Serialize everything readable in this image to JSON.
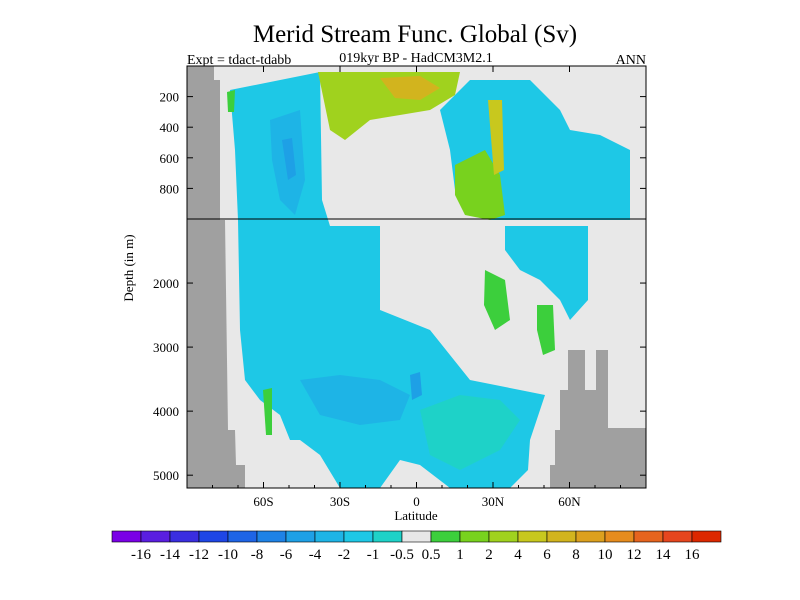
{
  "chart_data": {
    "type": "heatmap",
    "title": "Merid Stream Func. Global (Sv)",
    "subtitle_left": "Expt = tdact-tdabb",
    "subtitle_center": "019kyr BP - HadCM3M2.1",
    "subtitle_right": "ANN",
    "xlabel": "Latitude",
    "ylabel": "Depth (in m)",
    "x_range": [
      -90,
      90
    ],
    "x_ticks": [
      {
        "value": -60,
        "label": "60S"
      },
      {
        "value": -30,
        "label": "30S"
      },
      {
        "value": 0,
        "label": "0"
      },
      {
        "value": 30,
        "label": "30N"
      },
      {
        "value": 60,
        "label": "60N"
      }
    ],
    "y_upper_range": [
      0,
      1000
    ],
    "y_upper_ticks": [
      {
        "value": 200,
        "label": "200"
      },
      {
        "value": 400,
        "label": "400"
      },
      {
        "value": 600,
        "label": "600"
      },
      {
        "value": 800,
        "label": "800"
      }
    ],
    "y_lower_range": [
      1000,
      5200
    ],
    "y_lower_ticks": [
      {
        "value": 2000,
        "label": "2000"
      },
      {
        "value": 3000,
        "label": "3000"
      },
      {
        "value": 4000,
        "label": "4000"
      },
      {
        "value": 5000,
        "label": "5000"
      }
    ],
    "colorbar": {
      "labels": [
        "-16",
        "-14",
        "-12",
        "-10",
        "-8",
        "-6",
        "-4",
        "-2",
        "-1",
        "-0.5",
        "0.5",
        "1",
        "2",
        "4",
        "6",
        "8",
        "10",
        "12",
        "14",
        "16"
      ],
      "colors": [
        "#7a00e6",
        "#5a1ee0",
        "#3a2ee0",
        "#1e46e6",
        "#1e64e6",
        "#1e82e6",
        "#1ea0e6",
        "#1eb4e6",
        "#1ec8e6",
        "#1ed2c8",
        "#e8e8e8",
        "#3ccf3c",
        "#78d21e",
        "#a0d21e",
        "#c8c81e",
        "#d2b41e",
        "#dca01e",
        "#e68c1e",
        "#e6641e",
        "#e6461e",
        "#dc2800"
      ]
    },
    "land_color": "#a0a0a0",
    "background_color": "#e8e8e8"
  }
}
